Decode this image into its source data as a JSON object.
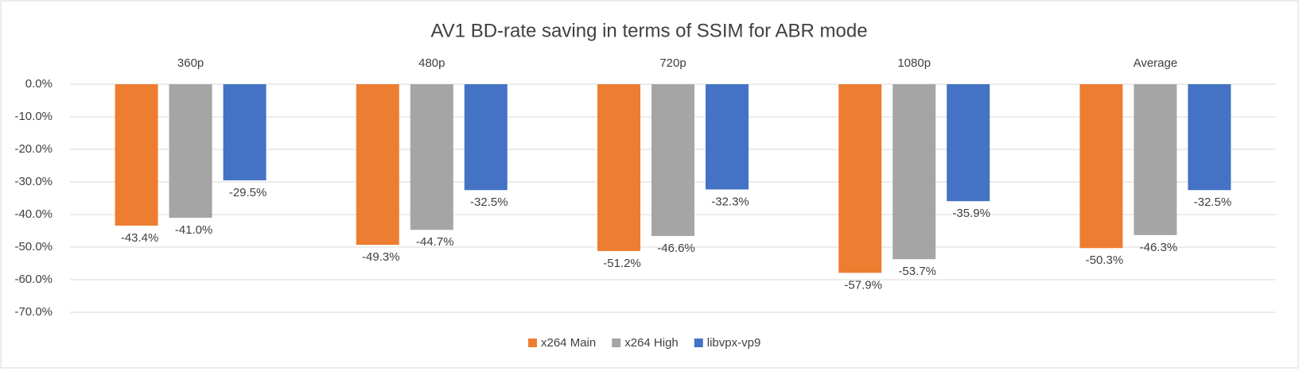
{
  "chart_data": {
    "type": "bar",
    "title": "AV1 BD-rate saving in terms of SSIM for ABR mode",
    "categories": [
      "360p",
      "480p",
      "720p",
      "1080p",
      "Average"
    ],
    "series": [
      {
        "name": "x264 Main",
        "color": "#ed7d31",
        "values": [
          -43.4,
          -49.3,
          -51.2,
          -57.9,
          -50.3
        ],
        "value_labels": [
          "-43.4%",
          "-49.3%",
          "-51.2%",
          "-57.9%",
          "-50.3%"
        ]
      },
      {
        "name": "x264 High",
        "color": "#a5a5a5",
        "values": [
          -41.0,
          -44.7,
          -46.6,
          -53.7,
          -46.3
        ],
        "value_labels": [
          "-41.0%",
          "-44.7%",
          "-46.6%",
          "-53.7%",
          "-46.3%"
        ]
      },
      {
        "name": "libvpx-vp9",
        "color": "#4472c4",
        "values": [
          -29.5,
          -32.5,
          -32.3,
          -35.9,
          -32.5
        ],
        "value_labels": [
          "-29.5%",
          "-32.5%",
          "-32.3%",
          "-35.9%",
          "-32.5%"
        ]
      }
    ],
    "ylim": [
      -70,
      0
    ],
    "yticks": [
      {
        "value": 0,
        "label": "0.0%"
      },
      {
        "value": -10,
        "label": "-10.0%"
      },
      {
        "value": -20,
        "label": "-20.0%"
      },
      {
        "value": -30,
        "label": "-30.0%"
      },
      {
        "value": -40,
        "label": "-40.0%"
      },
      {
        "value": -50,
        "label": "-50.0%"
      },
      {
        "value": -60,
        "label": "-60.0%"
      },
      {
        "value": -70,
        "label": "-70.0%"
      }
    ],
    "grid": true,
    "legend": "bottom"
  }
}
